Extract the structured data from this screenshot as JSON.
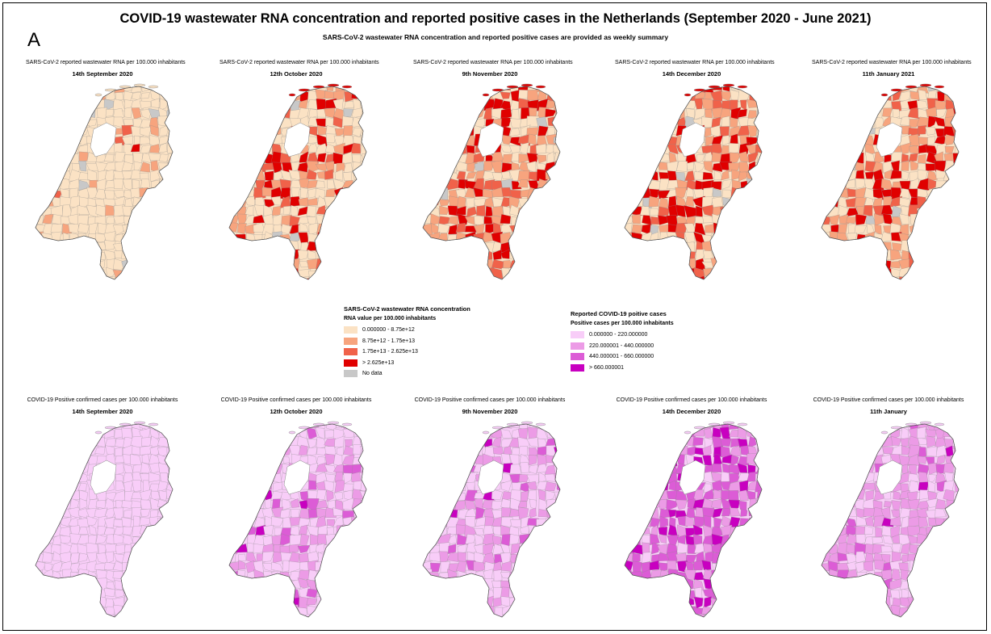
{
  "title": "COVID-19 wastewater RNA concentration and reported positive cases in the Netherlands (September 2020 - June 2021)",
  "panel_letter": "A",
  "subtitle": "SARS-CoV-2 wastewater RNA concentration and reported positive cases are provided as weekly summary",
  "rna_maps": [
    {
      "title": "SARS-CoV-2 reported wastewater RNA per 100.000 inhabitants",
      "date": "14th September 2020",
      "level": 0
    },
    {
      "title": "SARS-CoV-2 reported wastewater RNA per 100.000 inhabitants",
      "date": "12th October 2020",
      "level": 1
    },
    {
      "title": "SARS-CoV-2 reported wastewater RNA per 100.000 inhabitants",
      "date": "9th November 2020",
      "level": 2
    },
    {
      "title": "SARS-CoV-2 reported wastewater RNA per 100.000 inhabitants",
      "date": "14th December 2020",
      "level": 2
    },
    {
      "title": "SARS-CoV-2 reported wastewater RNA per 100.000 inhabitants",
      "date": "11th January 2021",
      "level": 3
    }
  ],
  "case_maps": [
    {
      "title": "COVID-19 Positive confirmed cases per 100.000 inhabitants",
      "date": "14th September 2020",
      "level": 0
    },
    {
      "title": "COVID-19 Positive confirmed cases per 100.000 inhabitants",
      "date": "12th October 2020",
      "level": 1
    },
    {
      "title": "COVID-19 Positive confirmed cases per 100.000 inhabitants",
      "date": "9th November 2020",
      "level": 1
    },
    {
      "title": "COVID-19 Positive confirmed cases per 100.000 inhabitants",
      "date": "14th December 2020",
      "level": 3
    },
    {
      "title": "COVID-19 Positive confirmed cases per 100.000 inhabitants",
      "date": "11th January",
      "level": 2
    }
  ],
  "rna_legend": {
    "title": "SARS-CoV-2 wastewater RNA concentration",
    "subtitle": "RNA value per 100.000 inhabitants",
    "items": [
      {
        "label": "0.000000 - 8.75e+12",
        "color": "#fbe2c4"
      },
      {
        "label": "8.75e+12 - 1.75e+13",
        "color": "#f7a47e"
      },
      {
        "label": "1.75e+13 - 2.625e+13",
        "color": "#f0624a"
      },
      {
        "label": "> 2.625e+13",
        "color": "#e00000"
      },
      {
        "label": "No data",
        "color": "#c8c8c8"
      }
    ]
  },
  "case_legend": {
    "title": "Reported COVID-19 poitive cases",
    "subtitle": "Positive cases per 100.000 inhabitants",
    "items": [
      {
        "label": "0.000000 - 220.000000",
        "color": "#f8cdf8"
      },
      {
        "label": "220.000001 - 440.000000",
        "color": "#ec9be6"
      },
      {
        "label": "440.000001 - 660.000000",
        "color": "#dc5cd6"
      },
      {
        "label": "> 660.000001",
        "color": "#c800c0"
      }
    ]
  }
}
